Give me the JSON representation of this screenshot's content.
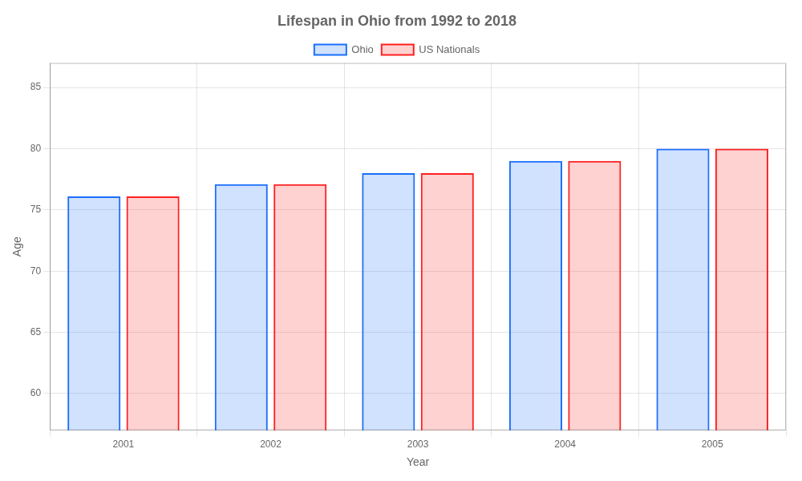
{
  "chart_data": {
    "type": "bar",
    "title": "Lifespan in Ohio from 1992 to 2018",
    "xlabel": "Year",
    "ylabel": "Age",
    "categories": [
      "2001",
      "2002",
      "2003",
      "2004",
      "2005"
    ],
    "series": [
      {
        "name": "Ohio",
        "color": "#1a6efc",
        "values": [
          76.1,
          77.1,
          78.0,
          79.0,
          80.0
        ]
      },
      {
        "name": "US Nationals",
        "color": "#ff2020",
        "values": [
          76.1,
          77.1,
          78.0,
          79.0,
          80.0
        ]
      }
    ],
    "ylim": [
      57,
      87
    ],
    "yticks": [
      60,
      65,
      70,
      75,
      80,
      85
    ],
    "grid": true,
    "legend": "top"
  }
}
